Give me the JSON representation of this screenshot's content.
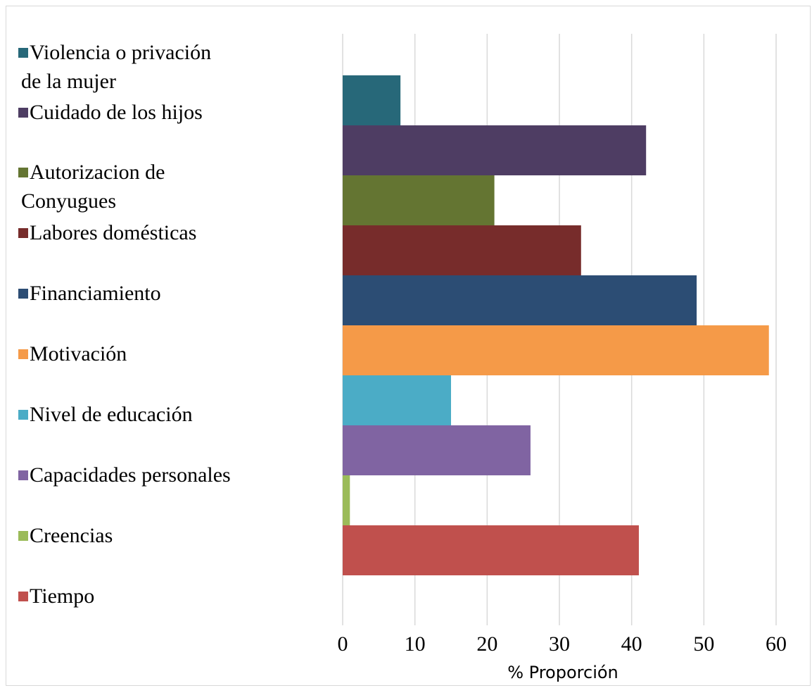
{
  "chart_data": {
    "type": "bar",
    "orientation": "horizontal",
    "xlabel": "% Proporción",
    "ylabel": "",
    "title": "",
    "xlim": [
      0,
      60
    ],
    "xticks": [
      0,
      10,
      20,
      30,
      40,
      50,
      60
    ],
    "grid": true,
    "legend_position": "left",
    "series": [
      {
        "name": "Violencia o privación de la mujer",
        "legend_lines": [
          "Violencia o privación",
          "de la mujer"
        ],
        "value": 8,
        "color": "#276879"
      },
      {
        "name": "Cuidado de los hijos",
        "legend_lines": [
          "Cuidado de los hijos"
        ],
        "value": 42,
        "color": "#4e3d63"
      },
      {
        "name": "Autorizacion de Conyugues",
        "legend_lines": [
          "Autorizacion de",
          "Conyugues"
        ],
        "value": 21,
        "color": "#647532"
      },
      {
        "name": "Labores domésticas",
        "legend_lines": [
          "Labores domésticas"
        ],
        "value": 33,
        "color": "#772c2b"
      },
      {
        "name": "Financiamiento",
        "legend_lines": [
          "Financiamiento"
        ],
        "value": 49,
        "color": "#2c4d74"
      },
      {
        "name": "Motivación",
        "legend_lines": [
          "Motivación"
        ],
        "value": 59,
        "color": "#f59a48"
      },
      {
        "name": "Nivel de educación",
        "legend_lines": [
          "Nivel de educación"
        ],
        "value": 15,
        "color": "#4bacc6"
      },
      {
        "name": "Capacidades personales",
        "legend_lines": [
          "Capacidades personales"
        ],
        "value": 26,
        "color": "#8064a2"
      },
      {
        "name": "Creencias",
        "legend_lines": [
          "Creencias"
        ],
        "value": 1,
        "color": "#9bbb59"
      },
      {
        "name": "Tiempo",
        "legend_lines": [
          "Tiempo"
        ],
        "value": 41,
        "color": "#c0504d"
      }
    ]
  }
}
